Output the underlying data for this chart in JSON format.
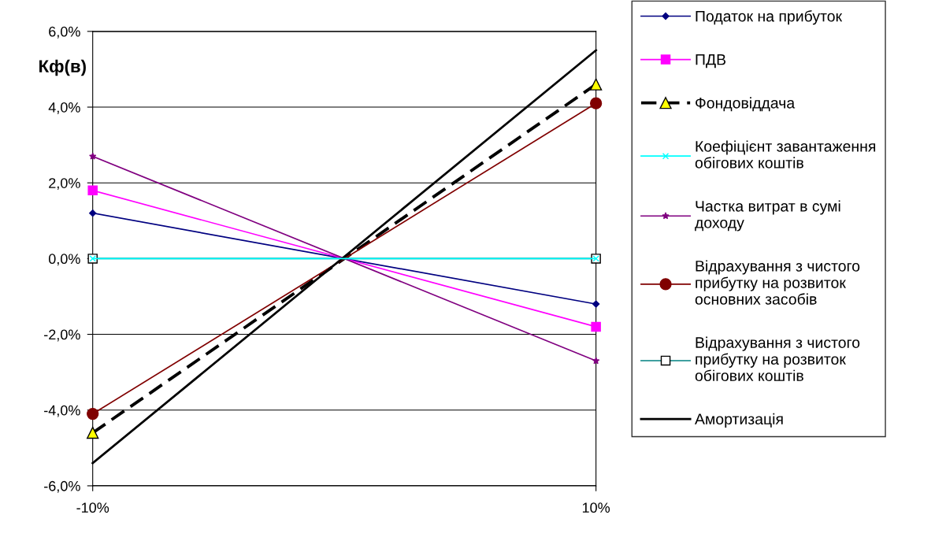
{
  "chart_data": {
    "type": "line",
    "ylabel": "Кф(в)",
    "x": [
      -10,
      10
    ],
    "xlim": [
      -10,
      10
    ],
    "xticks": [
      {
        "value": -10,
        "label": "-10%"
      },
      {
        "value": 10,
        "label": "10%"
      }
    ],
    "ylim": [
      -6,
      6
    ],
    "yticks": [
      {
        "value": -6,
        "label": "-6,0%"
      },
      {
        "value": -4,
        "label": "-4,0%"
      },
      {
        "value": -2,
        "label": "-2,0%"
      },
      {
        "value": 0,
        "label": "0,0%"
      },
      {
        "value": 2,
        "label": "2,0%"
      },
      {
        "value": 4,
        "label": "4,0%"
      },
      {
        "value": 6,
        "label": "6,0%"
      }
    ],
    "grid": "y",
    "legend": "right",
    "series": [
      {
        "name": "Податок на прибуток",
        "color": "#000080",
        "marker": "diamond",
        "values": [
          1.2,
          -1.2
        ]
      },
      {
        "name": "ПДВ",
        "color": "#ff00ff",
        "marker": "square",
        "values": [
          1.8,
          -1.8
        ]
      },
      {
        "name": "Фондовіддача",
        "color": "#000000",
        "marker": "triangle",
        "line_style": "dashed",
        "values": [
          -4.6,
          4.6
        ]
      },
      {
        "name": "Коефіцієнт завантаження\nобігових коштів",
        "color": "#00ffff",
        "marker": "cross",
        "values": [
          0,
          0
        ]
      },
      {
        "name": "Частка витрат в сумі\nдоходу",
        "color": "#800080",
        "marker": "star",
        "values": [
          2.7,
          -2.7
        ]
      },
      {
        "name": "Відрахування з чистого\nприбутку на розвиток\nосновних засобів",
        "color": "#800000",
        "marker": "circle",
        "values": [
          -4.1,
          4.1
        ]
      },
      {
        "name": "Відрахування з чистого\nприбутку на розвиток\nобігових коштів",
        "color": "#008080",
        "marker": "square",
        "values": [
          0,
          0
        ]
      },
      {
        "name": "Амортизація",
        "color": "#000000",
        "marker": "none",
        "values": [
          -5.4,
          5.5
        ]
      }
    ]
  }
}
